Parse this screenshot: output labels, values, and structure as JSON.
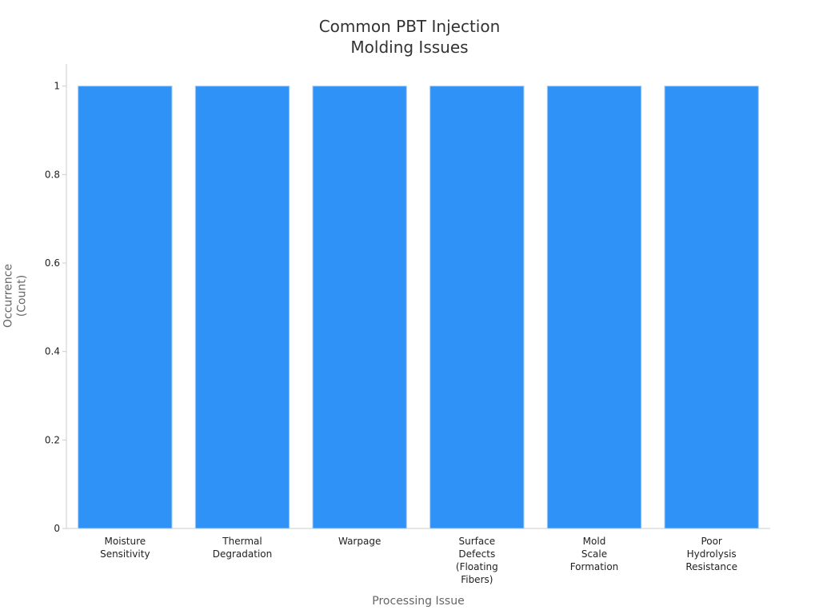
{
  "chart_data": {
    "type": "bar",
    "title": "Common PBT Injection Molding Issues",
    "x_label": "Processing Issue",
    "y_label": "Occurrence (Count)",
    "categories": [
      "Moisture Sensitivity",
      "Thermal Degradation",
      "Warpage",
      "Surface Defects (Floating Fibers)",
      "Mold Scale Formation",
      "Poor Hydrolysis Resistance"
    ],
    "values": [
      1,
      1,
      1,
      1,
      1,
      1
    ],
    "color": "#2e92f6",
    "ylim": [
      0,
      1.05
    ],
    "yticks": [
      0,
      0.2,
      0.4,
      0.6,
      0.8,
      1
    ],
    "grid": false
  }
}
